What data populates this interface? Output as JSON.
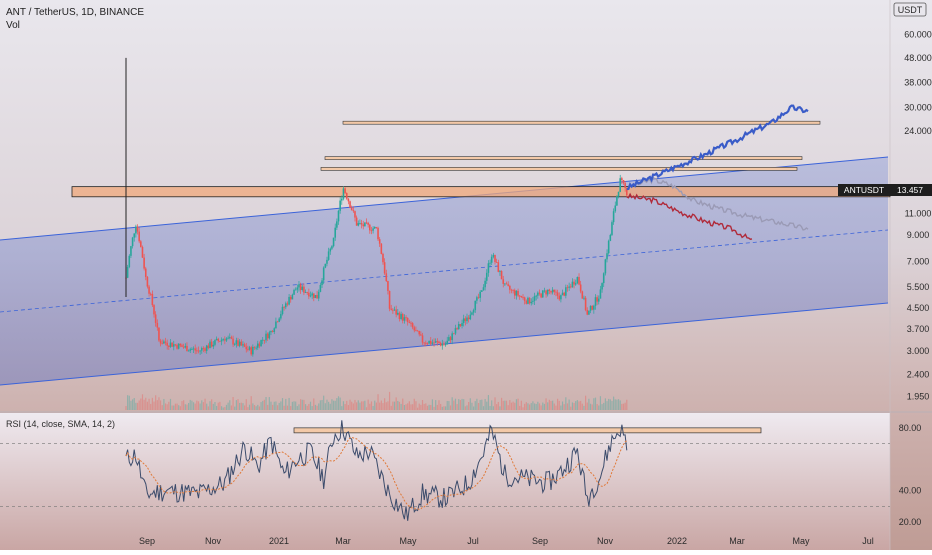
{
  "header": {
    "symbol": "ANT / TetherUS, 1D, BINANCE",
    "volume_label": "Vol",
    "currency_badge": "USDT"
  },
  "price_tag": {
    "symbol": "ANTUSDT",
    "value": "13.457"
  },
  "rsi": {
    "label": "RSI (14, close, SMA, 14, 2)",
    "ticks": [
      "80.00",
      "40.00",
      "20.00"
    ]
  },
  "colors": {
    "candle_up": "#26a69a",
    "candle_down": "#ef5350",
    "channel": "#3b63d9",
    "resistance_zone": "#f0a87a",
    "projection_blue": "#3a5cc8",
    "projection_grey": "#9a9ab5",
    "projection_red": "#b02a3a",
    "rsi_line": "#3b4b6b",
    "rsi_ma": "#e07a3a",
    "price_tag_bg": "#1e1e1e"
  },
  "chart_data": [
    {
      "type": "candlestick",
      "series": [
        {
          "name": "ANTUSDT"
        }
      ],
      "scale": "log",
      "y_ticks": [
        60,
        48,
        38,
        30,
        24,
        11,
        9,
        7,
        5.5,
        4.5,
        3.7,
        3,
        2.4,
        1.95
      ],
      "y_tick_labels": [
        "60.000",
        "48.000",
        "38.000",
        "30.000",
        "24.000",
        "11.000",
        "9.000",
        "7.000",
        "5.500",
        "4.500",
        "3.700",
        "3.000",
        "2.400",
        "1.950"
      ],
      "x_tick_labels": [
        "Sep",
        "Nov",
        "2021",
        "Mar",
        "May",
        "Jul",
        "Sep",
        "Nov",
        "2022",
        "Mar",
        "May",
        "Jul"
      ],
      "ylim": [
        1.8,
        70
      ],
      "current_price": 13.457,
      "price_waypoints": [
        [
          0,
          6
        ],
        [
          3,
          10
        ],
        [
          6,
          6
        ],
        [
          10,
          3.3
        ],
        [
          22,
          3.0
        ],
        [
          30,
          3.4
        ],
        [
          38,
          3.0
        ],
        [
          44,
          3.6
        ],
        [
          52,
          5.5
        ],
        [
          58,
          5.0
        ],
        [
          63,
          8.5
        ],
        [
          66,
          14
        ],
        [
          70,
          10
        ],
        [
          76,
          9.5
        ],
        [
          80,
          4.5
        ],
        [
          85,
          4.0
        ],
        [
          90,
          3.3
        ],
        [
          97,
          3.2
        ],
        [
          104,
          4.2
        ],
        [
          108,
          5.2
        ],
        [
          111,
          7.5
        ],
        [
          115,
          5.5
        ],
        [
          122,
          4.8
        ],
        [
          128,
          5.3
        ],
        [
          132,
          5.0
        ],
        [
          137,
          6
        ],
        [
          140,
          4.2
        ],
        [
          144,
          5.2
        ],
        [
          147,
          9
        ],
        [
          150,
          15
        ],
        [
          152,
          13.5
        ]
      ],
      "zone": [
        12.9,
        14.2
      ],
      "horizontal_levels": [
        26,
        18.6,
        16.8,
        15.8
      ],
      "projections": {
        "bullish": [
          [
            152,
            14
          ],
          [
            162,
            16
          ],
          [
            175,
            19
          ],
          [
            185,
            22
          ],
          [
            196,
            26
          ],
          [
            202,
            30
          ],
          [
            207,
            29
          ]
        ],
        "neutral": [
          [
            152,
            14
          ],
          [
            160,
            15.2
          ],
          [
            166,
            14.3
          ],
          [
            172,
            12.5
          ],
          [
            180,
            11.5
          ],
          [
            190,
            10.6
          ],
          [
            200,
            10.0
          ],
          [
            207,
            9.5
          ]
        ],
        "bearish": [
          [
            152,
            13
          ],
          [
            160,
            12.5
          ],
          [
            168,
            11.2
          ],
          [
            176,
            10.2
          ],
          [
            184,
            9.5
          ],
          [
            190,
            8.5
          ]
        ]
      }
    },
    {
      "type": "line",
      "series": [
        {
          "name": "RSI"
        },
        {
          "name": "SMA"
        }
      ],
      "ylim": [
        15,
        85
      ],
      "y_ticks": [
        80,
        40,
        20
      ],
      "reference_lines": [
        70,
        30
      ],
      "rsi_waypoints": [
        [
          0,
          60
        ],
        [
          3,
          63
        ],
        [
          6,
          38
        ],
        [
          12,
          40
        ],
        [
          22,
          38
        ],
        [
          30,
          45
        ],
        [
          36,
          68
        ],
        [
          40,
          55
        ],
        [
          44,
          72
        ],
        [
          48,
          50
        ],
        [
          52,
          60
        ],
        [
          56,
          65
        ],
        [
          60,
          48
        ],
        [
          63,
          75
        ],
        [
          66,
          80
        ],
        [
          70,
          62
        ],
        [
          74,
          65
        ],
        [
          80,
          38
        ],
        [
          85,
          24
        ],
        [
          90,
          38
        ],
        [
          97,
          35
        ],
        [
          104,
          45
        ],
        [
          108,
          62
        ],
        [
          111,
          78
        ],
        [
          115,
          50
        ],
        [
          120,
          48
        ],
        [
          128,
          45
        ],
        [
          132,
          52
        ],
        [
          137,
          65
        ],
        [
          140,
          35
        ],
        [
          144,
          50
        ],
        [
          147,
          70
        ],
        [
          150,
          80
        ],
        [
          152,
          70
        ]
      ]
    }
  ]
}
